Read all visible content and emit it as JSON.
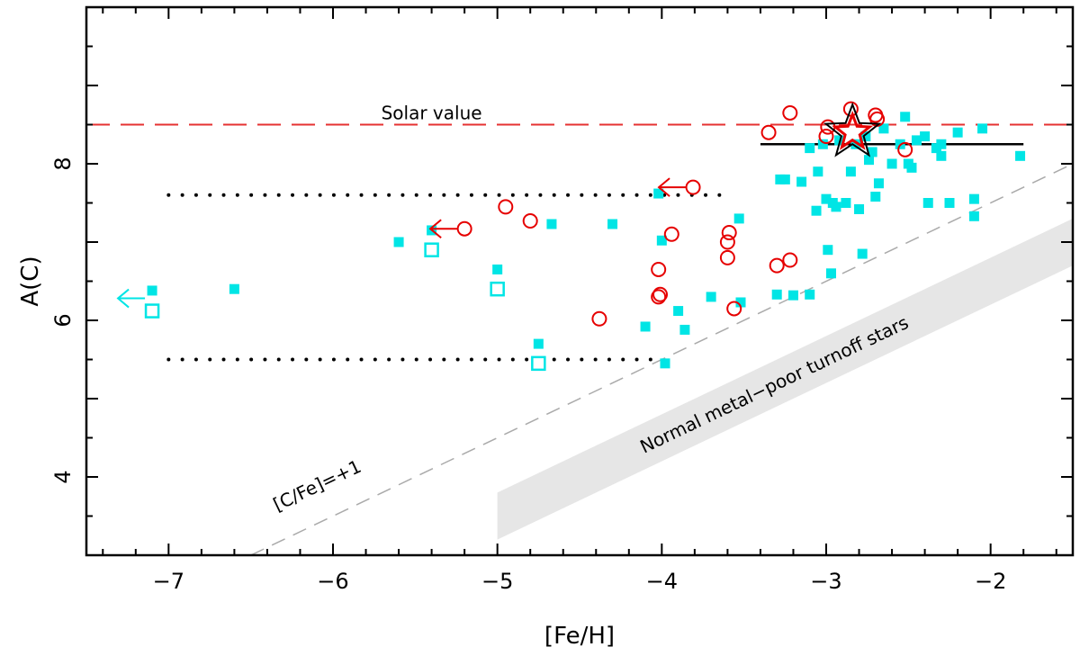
{
  "chart_data": {
    "type": "scatter",
    "xlabel": "[Fe/H]",
    "ylabel": "A(C)",
    "xlim": [
      -7.5,
      -1.5
    ],
    "ylim": [
      3.0,
      10.0
    ],
    "x_ticks": [
      {
        "value": -7,
        "label": "−7"
      },
      {
        "value": -6,
        "label": "−6"
      },
      {
        "value": -5,
        "label": "−5"
      },
      {
        "value": -4,
        "label": "−4"
      },
      {
        "value": -3,
        "label": "−3"
      },
      {
        "value": -2,
        "label": "−2"
      }
    ],
    "y_ticks": [
      {
        "value": 4,
        "label": "4"
      },
      {
        "value": 6,
        "label": "6"
      },
      {
        "value": 8,
        "label": "8"
      }
    ],
    "colors": {
      "cyan": "#00e5e5",
      "red": "#e60000",
      "solar_line": "#e63232",
      "gray_line": "#aaaaaa",
      "band": "#e6e6e6",
      "black": "#000000"
    },
    "solar_value": {
      "y": 8.5,
      "label": "Solar value"
    },
    "cfe_line": {
      "label": "[C/Fe]=+1",
      "offset": 9.5
    },
    "turnoff_band": {
      "label": "Normal metal−poor turnoff stars",
      "x": [
        -5.0,
        -1.5
      ],
      "lower": [
        3.2,
        6.7
      ],
      "upper": [
        3.8,
        7.3
      ]
    },
    "dotted_lines": [
      {
        "x": [
          -7.0,
          -3.6
        ],
        "y": 7.6
      },
      {
        "x": [
          -7.0,
          -4.0
        ],
        "y": 5.5
      }
    ],
    "black_segment": {
      "x": [
        -3.4,
        -1.8
      ],
      "y": 8.25
    },
    "star_point": {
      "x": -2.84,
      "y": 8.4
    },
    "series": [
      {
        "name": "filled cyan squares",
        "marker": "filled-square",
        "points": [
          [
            -7.1,
            6.38
          ],
          [
            -6.6,
            6.4
          ],
          [
            -5.6,
            7.0
          ],
          [
            -5.4,
            7.15
          ],
          [
            -5.0,
            6.65
          ],
          [
            -4.75,
            5.7
          ],
          [
            -4.67,
            7.23
          ],
          [
            -4.3,
            7.23
          ],
          [
            -4.02,
            7.62
          ],
          [
            -4.0,
            7.02
          ],
          [
            -3.98,
            5.45
          ],
          [
            -4.1,
            5.92
          ],
          [
            -3.9,
            6.12
          ],
          [
            -3.86,
            5.88
          ],
          [
            -3.7,
            6.3
          ],
          [
            -3.53,
            7.3
          ],
          [
            -3.52,
            6.23
          ],
          [
            -3.3,
            6.33
          ],
          [
            -3.28,
            7.8
          ],
          [
            -3.25,
            7.8
          ],
          [
            -3.2,
            6.32
          ],
          [
            -3.15,
            7.77
          ],
          [
            -3.1,
            6.33
          ],
          [
            -3.1,
            8.2
          ],
          [
            -3.06,
            7.4
          ],
          [
            -3.05,
            7.9
          ],
          [
            -3.02,
            8.25
          ],
          [
            -3.0,
            7.55
          ],
          [
            -2.99,
            6.9
          ],
          [
            -2.97,
            6.6
          ],
          [
            -2.96,
            7.5
          ],
          [
            -2.94,
            7.45
          ],
          [
            -2.92,
            8.3
          ],
          [
            -2.88,
            7.5
          ],
          [
            -2.85,
            7.9
          ],
          [
            -2.82,
            8.25
          ],
          [
            -2.8,
            7.42
          ],
          [
            -2.78,
            6.85
          ],
          [
            -2.76,
            8.35
          ],
          [
            -2.74,
            8.05
          ],
          [
            -2.72,
            8.15
          ],
          [
            -2.7,
            7.58
          ],
          [
            -2.68,
            7.75
          ],
          [
            -2.65,
            8.45
          ],
          [
            -2.6,
            8.0
          ],
          [
            -2.55,
            8.25
          ],
          [
            -2.52,
            8.6
          ],
          [
            -2.5,
            8.0
          ],
          [
            -2.48,
            7.95
          ],
          [
            -2.45,
            8.3
          ],
          [
            -2.4,
            8.35
          ],
          [
            -2.38,
            7.5
          ],
          [
            -2.33,
            8.2
          ],
          [
            -2.3,
            8.1
          ],
          [
            -2.25,
            7.5
          ],
          [
            -2.2,
            8.4
          ],
          [
            -2.1,
            7.55
          ],
          [
            -2.1,
            7.33
          ],
          [
            -2.05,
            8.45
          ],
          [
            -2.3,
            8.25
          ],
          [
            -1.82,
            8.1
          ]
        ]
      },
      {
        "name": "open cyan squares (upper limits)",
        "marker": "open-square",
        "points": [
          {
            "x": -7.1,
            "y": 6.12,
            "arrow": "left"
          },
          {
            "x": -5.4,
            "y": 6.9
          },
          {
            "x": -5.0,
            "y": 6.4
          },
          {
            "x": -4.75,
            "y": 5.45
          }
        ]
      },
      {
        "name": "open red circles",
        "marker": "open-circle",
        "points": [
          {
            "x": -5.2,
            "y": 7.17,
            "arrow": "left"
          },
          {
            "x": -3.81,
            "y": 7.7,
            "arrow": "left"
          },
          [
            -4.95,
            7.45
          ],
          [
            -4.8,
            7.27
          ],
          [
            -4.38,
            6.02
          ],
          [
            -4.02,
            6.65
          ],
          [
            -4.01,
            6.33
          ],
          [
            -4.02,
            6.3
          ],
          [
            -3.94,
            7.1
          ],
          [
            -3.6,
            7.0
          ],
          [
            -3.6,
            6.8
          ],
          [
            -3.59,
            7.12
          ],
          [
            -3.56,
            6.15
          ],
          [
            -3.35,
            8.4
          ],
          [
            -3.3,
            6.7
          ],
          [
            -3.22,
            6.77
          ],
          [
            -3.22,
            8.65
          ],
          [
            -3.0,
            8.35
          ],
          [
            -2.99,
            8.47
          ],
          [
            -2.85,
            8.7
          ],
          [
            -2.7,
            8.62
          ],
          [
            -2.69,
            8.57
          ],
          [
            -2.52,
            8.18
          ]
        ]
      }
    ]
  }
}
